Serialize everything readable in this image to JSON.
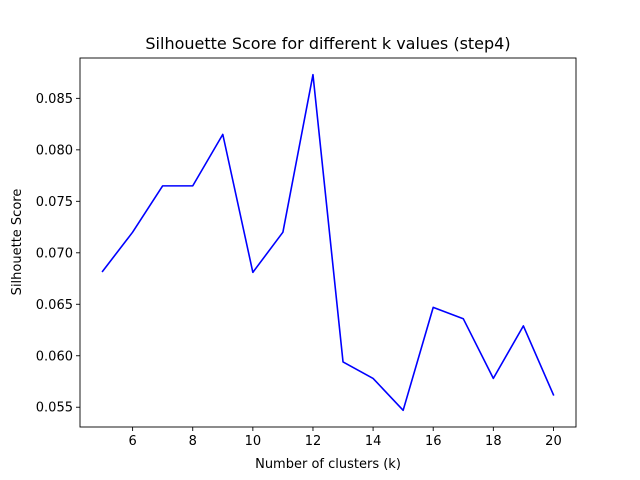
{
  "chart_data": {
    "type": "line",
    "title": "Silhouette Score for different k values (step4)",
    "xlabel": "Number of clusters (k)",
    "ylabel": "Silhouette Score",
    "x": [
      5,
      6,
      7,
      8,
      9,
      10,
      11,
      12,
      13,
      14,
      15,
      16,
      17,
      18,
      19,
      20
    ],
    "series": [
      {
        "values": [
          0.0682,
          0.072,
          0.0765,
          0.0765,
          0.0815,
          0.0681,
          0.072,
          0.0873,
          0.0594,
          0.0578,
          0.0547,
          0.0647,
          0.0636,
          0.0578,
          0.0629,
          0.0562
        ],
        "color": "#0000ff"
      }
    ],
    "xlim": [
      4.25,
      20.75
    ],
    "ylim": [
      0.05308,
      0.08892
    ],
    "xticks": [
      6,
      8,
      10,
      12,
      14,
      16,
      18,
      20
    ],
    "xtick_labels": [
      "6",
      "8",
      "10",
      "12",
      "14",
      "16",
      "18",
      "20"
    ],
    "yticks": [
      0.055,
      0.06,
      0.065,
      0.07,
      0.075,
      0.08,
      0.085
    ],
    "ytick_labels": [
      "0.055",
      "0.060",
      "0.065",
      "0.070",
      "0.075",
      "0.080",
      "0.085"
    ],
    "grid": false,
    "legend": false
  }
}
